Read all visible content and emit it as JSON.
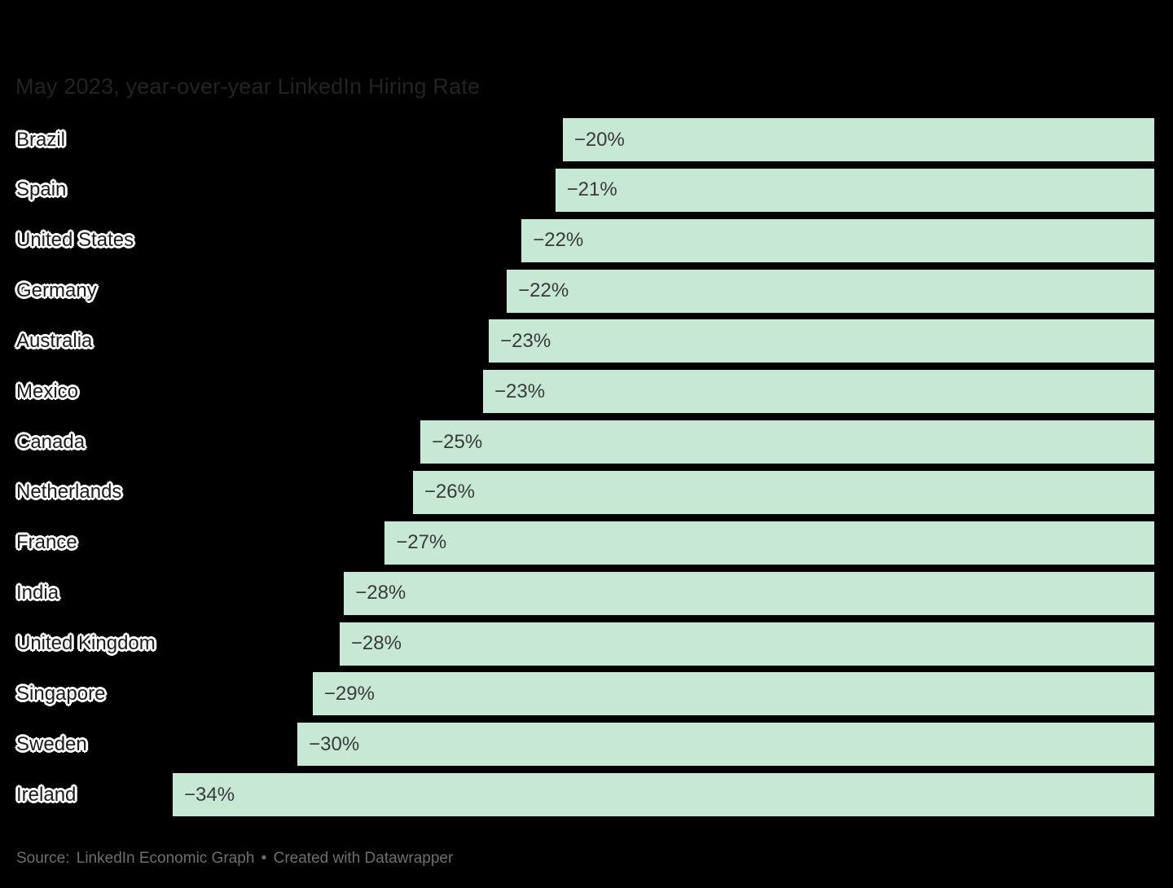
{
  "title": "May 2023, year-over-year LinkedIn Hiring Rate",
  "colors": {
    "background": "#000000",
    "bar": "#c6e8d5",
    "title_text": "#232323",
    "country_text": "#1b1b1b",
    "value_text": "#3a3a3a",
    "footer_text": "#6e6e6e",
    "halo": "#ffffff"
  },
  "chart_data": {
    "type": "bar",
    "orientation": "horizontal",
    "title": "May 2023, year-over-year LinkedIn Hiring Rate",
    "xlabel": "",
    "ylabel": "",
    "xlim": [
      -35,
      0
    ],
    "grid": false,
    "legend": false,
    "value_anchor": "zero-at-right-edge",
    "rows": [
      {
        "country": "Brazil",
        "label": "−20%",
        "value": -20,
        "value_precise": -20.49
      },
      {
        "country": "Spain",
        "label": "−21%",
        "value": -21,
        "value_precise": -20.75
      },
      {
        "country": "United States",
        "label": "−22%",
        "value": -22,
        "value_precise": -21.92
      },
      {
        "country": "Germany",
        "label": "−22%",
        "value": -22,
        "value_precise": -22.43
      },
      {
        "country": "Australia",
        "label": "−23%",
        "value": -23,
        "value_precise": -23.05
      },
      {
        "country": "Mexico",
        "label": "−23%",
        "value": -23,
        "value_precise": -23.25
      },
      {
        "country": "Canada",
        "label": "−25%",
        "value": -25,
        "value_precise": -25.42
      },
      {
        "country": "Netherlands",
        "label": "−26%",
        "value": -26,
        "value_precise": -25.68
      },
      {
        "country": "France",
        "label": "−27%",
        "value": -27,
        "value_precise": -26.66
      },
      {
        "country": "India",
        "label": "−28%",
        "value": -28,
        "value_precise": -28.07
      },
      {
        "country": "United Kingdom",
        "label": "−28%",
        "value": -28,
        "value_precise": -28.22
      },
      {
        "country": "Singapore",
        "label": "−29%",
        "value": -29,
        "value_precise": -29.15
      },
      {
        "country": "Sweden",
        "label": "−30%",
        "value": -30,
        "value_precise": -29.68
      },
      {
        "country": "Ireland",
        "label": "−34%",
        "value": -34,
        "value_precise": -34.0
      }
    ]
  },
  "footer": {
    "source_label": "Source:",
    "source_name": "LinkedIn Economic Graph",
    "separator": "•",
    "attribution": "Created with Datawrapper"
  }
}
